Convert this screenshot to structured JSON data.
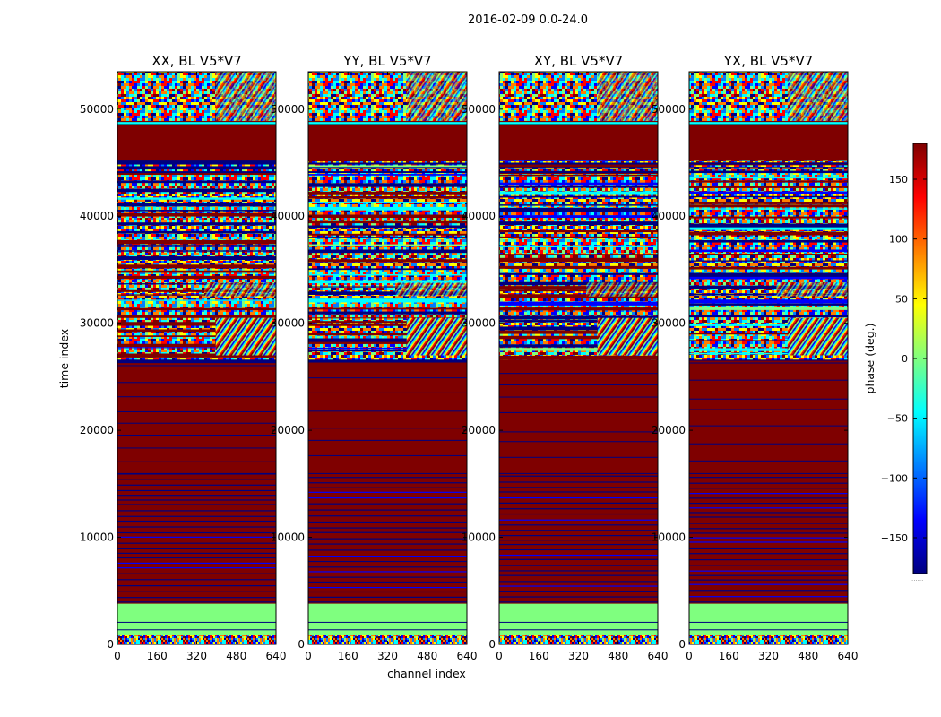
{
  "figure": {
    "suptitle": "2016-02-09 0.0-24.0",
    "xlabel": "channel index",
    "ylabel": "time index",
    "colorbar_label": "phase (deg.)",
    "colorbar_ticks": [
      "150",
      "100",
      "50",
      "0",
      "−50",
      "−100",
      "−150"
    ],
    "colorbar_tick_values": [
      150,
      100,
      50,
      0,
      -50,
      -100,
      -150
    ],
    "colorbar_range": [
      -180,
      180
    ],
    "colorbar_footnote": "......",
    "colormap": [
      "#00007f",
      "#0000ff",
      "#007fff",
      "#00ffff",
      "#7fff7f",
      "#ffff00",
      "#ff7f00",
      "#ff0000",
      "#7f0000"
    ]
  },
  "chart_data": [
    {
      "type": "heatmap",
      "title": "XX, BL V5*V7",
      "xlabel": "channel index",
      "ylabel": "time index",
      "xlim": [
        0,
        640
      ],
      "ylim": [
        0,
        53500
      ],
      "xticks": [
        "0",
        "160",
        "320",
        "480",
        "640"
      ],
      "yticks": [
        "0",
        "10000",
        "20000",
        "30000",
        "40000",
        "50000"
      ],
      "band_description": [
        {
          "time_range": [
            0,
            3800
          ],
          "pattern": "mixed noise / constant 0 deg"
        },
        {
          "time_range": [
            3800,
            26500
          ],
          "pattern": "mostly +180 deg with striping"
        },
        {
          "time_range": [
            26500,
            48500
          ],
          "pattern": "phase noise with fringes"
        },
        {
          "time_range": [
            48500,
            53500
          ],
          "pattern": "phase noise"
        }
      ]
    },
    {
      "type": "heatmap",
      "title": "YY, BL V5*V7",
      "xlim": [
        0,
        640
      ],
      "ylim": [
        0,
        53500
      ],
      "xticks": [
        "0",
        "160",
        "320",
        "480",
        "640"
      ],
      "yticks": [
        "0",
        "10000",
        "20000",
        "30000",
        "40000",
        "50000"
      ]
    },
    {
      "type": "heatmap",
      "title": "XY, BL V5*V7",
      "xlim": [
        0,
        640
      ],
      "ylim": [
        0,
        53500
      ],
      "xticks": [
        "0",
        "160",
        "320",
        "480",
        "640"
      ],
      "yticks": [
        "0",
        "10000",
        "20000",
        "30000",
        "40000",
        "50000"
      ]
    },
    {
      "type": "heatmap",
      "title": "YX, BL V5*V7",
      "xlim": [
        0,
        640
      ],
      "ylim": [
        0,
        53500
      ],
      "xticks": [
        "0",
        "160",
        "320",
        "480",
        "640"
      ],
      "yticks": [
        "0",
        "10000",
        "20000",
        "30000",
        "40000",
        "50000"
      ]
    }
  ]
}
